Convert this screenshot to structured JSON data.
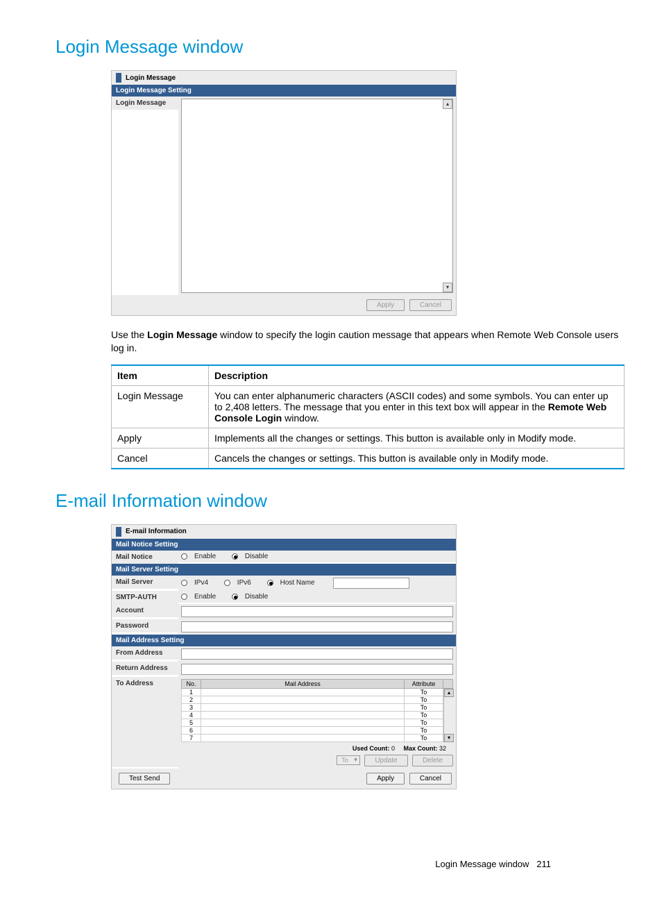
{
  "heading1": "Login Message window",
  "heading2": "E-mail Information window",
  "loginShot": {
    "title": "Login Message",
    "sectionBar": "Login Message Setting",
    "fieldLabel": "Login Message",
    "apply": "Apply",
    "cancel": "Cancel"
  },
  "intro_pre": "Use the ",
  "intro_bold": "Login Message",
  "intro_post": " window to specify the login caution message that appears when Remote Web Console users log in.",
  "descTable": {
    "h_item": "Item",
    "h_desc": "Description",
    "rows": [
      {
        "item": "Login Message",
        "pre": "You can enter alphanumeric characters (ASCII codes) and some symbols. You can enter up to 2,408 letters. The message that you enter in this text box will appear in the ",
        "bold": "Remote Web Console Login",
        "post": " window."
      },
      {
        "item": "Apply",
        "pre": "Implements all the changes or settings. This button is available only in Modify mode.",
        "bold": "",
        "post": ""
      },
      {
        "item": "Cancel",
        "pre": "Cancels the changes or settings. This button is available only in Modify mode.",
        "bold": "",
        "post": ""
      }
    ]
  },
  "emailShot": {
    "title": "E-mail Information",
    "bar_notice": "Mail Notice Setting",
    "lbl_notice": "Mail Notice",
    "opt_enable": "Enable",
    "opt_disable": "Disable",
    "bar_server": "Mail Server Setting",
    "lbl_server": "Mail Server",
    "opt_ipv4": "IPv4",
    "opt_ipv6": "IPv6",
    "opt_host": "Host Name",
    "lbl_smtp": "SMTP-AUTH",
    "lbl_account": "Account",
    "lbl_password": "Password",
    "bar_addr": "Mail Address Setting",
    "lbl_from": "From Address",
    "lbl_return": "Return Address",
    "lbl_to": "To Address",
    "th_no": "No.",
    "th_mail": "Mail Address",
    "th_attr": "Attribute",
    "row_attr": "To",
    "row_nums": [
      "1",
      "2",
      "3",
      "4",
      "5",
      "6",
      "7"
    ],
    "used_lbl": "Used Count:",
    "used_v": "0",
    "max_lbl": "Max Count:",
    "max_v": "32",
    "sel_to": "To",
    "btn_update": "Update",
    "btn_delete": "Delete",
    "btn_test": "Test Send",
    "btn_apply": "Apply",
    "btn_cancel": "Cancel"
  },
  "footer_text": "Login Message window",
  "footer_page": "211"
}
